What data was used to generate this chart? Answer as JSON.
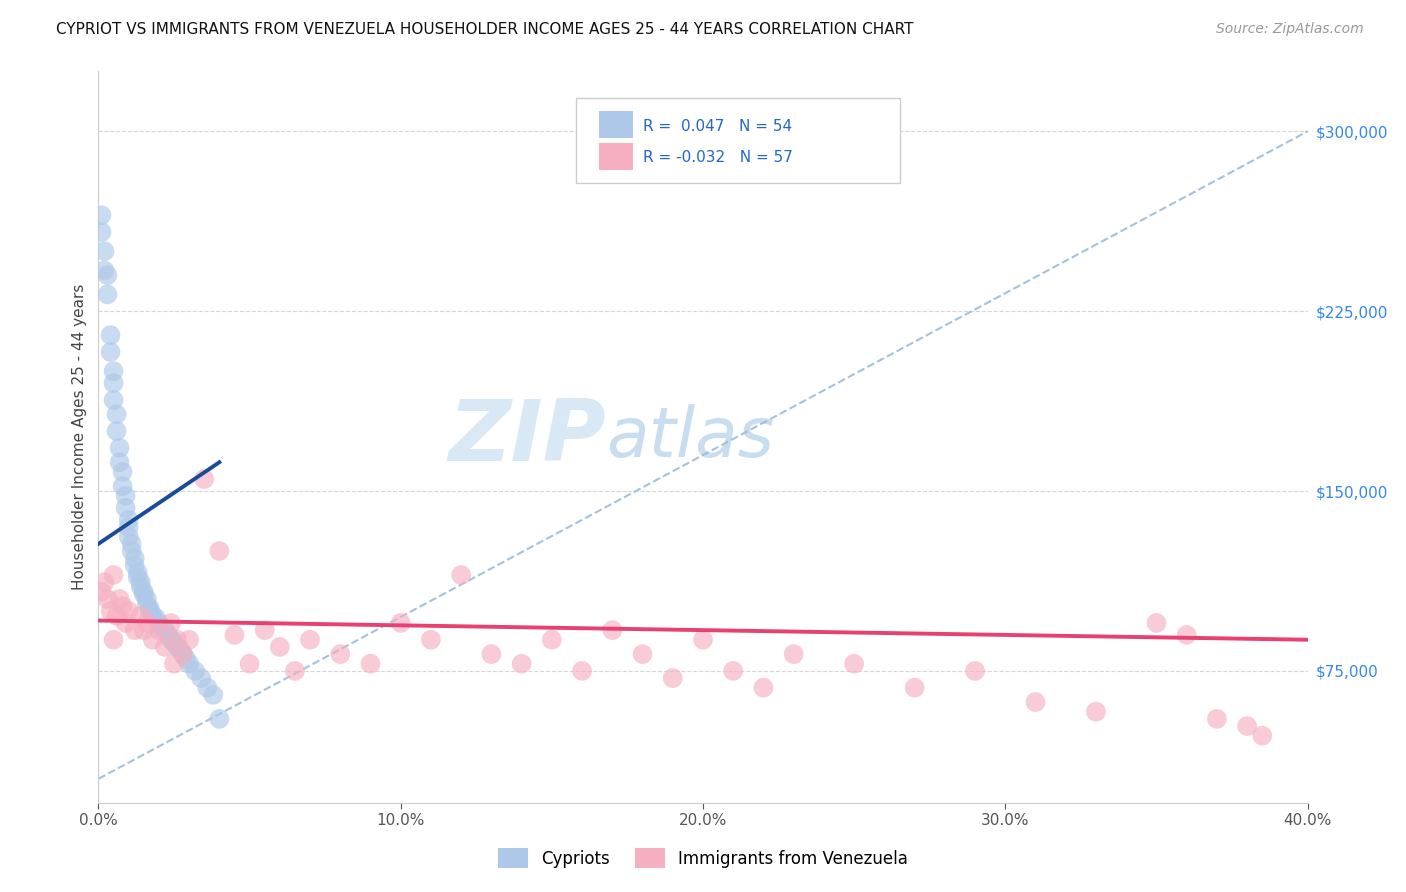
{
  "title": "CYPRIOT VS IMMIGRANTS FROM VENEZUELA HOUSEHOLDER INCOME AGES 25 - 44 YEARS CORRELATION CHART",
  "source": "Source: ZipAtlas.com",
  "ylabel": "Householder Income Ages 25 - 44 years",
  "xmin": 0.0,
  "xmax": 0.4,
  "ytick_labels": [
    "$75,000",
    "$150,000",
    "$225,000",
    "$300,000"
  ],
  "ytick_values": [
    75000,
    150000,
    225000,
    300000
  ],
  "ymin": 20000,
  "ymax": 325000,
  "xtick_labels": [
    "0.0%",
    "10.0%",
    "20.0%",
    "30.0%",
    "40.0%"
  ],
  "xtick_values": [
    0.0,
    0.1,
    0.2,
    0.3,
    0.4
  ],
  "legend_label1": "Cypriots",
  "legend_label2": "Immigrants from Venezuela",
  "R1": 0.047,
  "N1": 54,
  "R2": -0.032,
  "N2": 57,
  "color_blue": "#adc8e8",
  "color_pink": "#f5afc0",
  "line_color_blue": "#1a4a9a",
  "line_color_pink": "#e84070",
  "dash_color": "#9abcd8",
  "grid_color": "#cccccc",
  "background_color": "#ffffff",
  "watermark_zip": "ZIP",
  "watermark_atlas": "atlas",
  "cypriot_x": [
    0.001,
    0.001,
    0.002,
    0.002,
    0.003,
    0.003,
    0.004,
    0.004,
    0.005,
    0.005,
    0.005,
    0.006,
    0.006,
    0.007,
    0.007,
    0.008,
    0.008,
    0.009,
    0.009,
    0.01,
    0.01,
    0.01,
    0.011,
    0.011,
    0.012,
    0.012,
    0.013,
    0.013,
    0.014,
    0.014,
    0.015,
    0.015,
    0.016,
    0.016,
    0.017,
    0.017,
    0.018,
    0.019,
    0.02,
    0.021,
    0.022,
    0.023,
    0.024,
    0.025,
    0.026,
    0.027,
    0.028,
    0.029,
    0.03,
    0.032,
    0.034,
    0.036,
    0.038,
    0.04
  ],
  "cypriot_y": [
    265000,
    258000,
    250000,
    242000,
    232000,
    240000,
    215000,
    208000,
    200000,
    195000,
    188000,
    182000,
    175000,
    168000,
    162000,
    158000,
    152000,
    148000,
    143000,
    138000,
    135000,
    131000,
    128000,
    125000,
    122000,
    119000,
    116000,
    114000,
    112000,
    110000,
    108000,
    107000,
    105000,
    103000,
    101000,
    100000,
    98000,
    97000,
    95000,
    93000,
    92000,
    90000,
    88000,
    87000,
    85000,
    84000,
    82000,
    80000,
    78000,
    75000,
    72000,
    68000,
    65000,
    55000
  ],
  "venezuela_x": [
    0.001,
    0.002,
    0.003,
    0.004,
    0.005,
    0.006,
    0.007,
    0.008,
    0.009,
    0.01,
    0.012,
    0.014,
    0.016,
    0.018,
    0.02,
    0.022,
    0.024,
    0.026,
    0.028,
    0.03,
    0.035,
    0.04,
    0.045,
    0.05,
    0.055,
    0.06,
    0.065,
    0.07,
    0.08,
    0.09,
    0.1,
    0.11,
    0.12,
    0.13,
    0.14,
    0.15,
    0.16,
    0.17,
    0.18,
    0.19,
    0.2,
    0.21,
    0.22,
    0.23,
    0.25,
    0.27,
    0.29,
    0.31,
    0.33,
    0.35,
    0.36,
    0.37,
    0.38,
    0.385,
    0.005,
    0.015,
    0.025
  ],
  "venezuela_y": [
    108000,
    112000,
    105000,
    100000,
    115000,
    98000,
    105000,
    102000,
    95000,
    100000,
    92000,
    98000,
    95000,
    88000,
    92000,
    85000,
    95000,
    88000,
    82000,
    88000,
    155000,
    125000,
    90000,
    78000,
    92000,
    85000,
    75000,
    88000,
    82000,
    78000,
    95000,
    88000,
    115000,
    82000,
    78000,
    88000,
    75000,
    92000,
    82000,
    72000,
    88000,
    75000,
    68000,
    82000,
    78000,
    68000,
    75000,
    62000,
    58000,
    95000,
    90000,
    55000,
    52000,
    48000,
    88000,
    92000,
    78000
  ],
  "cyp_line_x": [
    0.0,
    0.04
  ],
  "cyp_line_y": [
    128000,
    162000
  ],
  "ven_line_x": [
    0.0,
    0.4
  ],
  "ven_line_y": [
    96000,
    88000
  ],
  "dash_line_x": [
    0.0,
    0.4
  ],
  "dash_line_y": [
    30000,
    300000
  ]
}
